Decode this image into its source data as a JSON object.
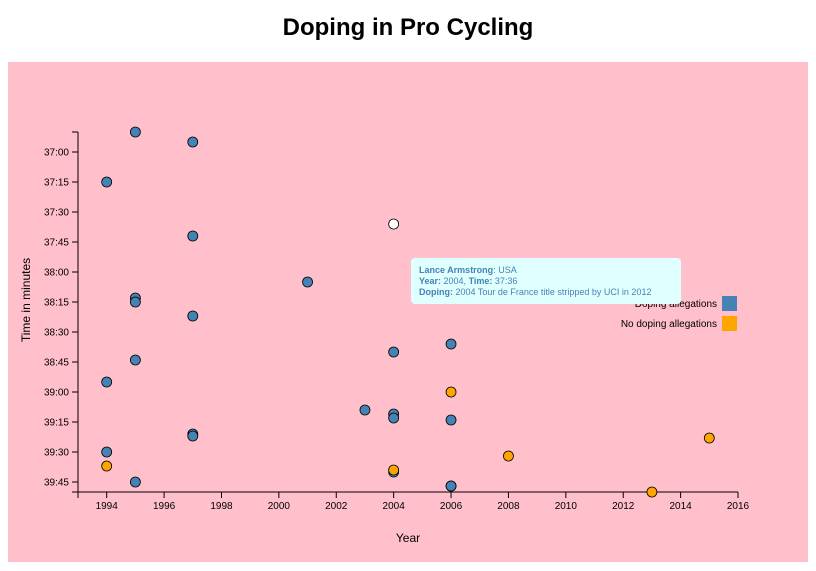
{
  "page": {
    "title": "Doping in Pro Cycling"
  },
  "colors": {
    "background": "#ffc0cb",
    "doping": "#4682b4",
    "no_doping": "#ffa500",
    "highlight": "#ffffff",
    "tooltip_bg": "#e0ffff"
  },
  "tooltip": {
    "name": "Lance Armstrong",
    "nationality": ": USA",
    "year_label": "Year:",
    "year_value": " 2004, ",
    "time_label": "Time:",
    "time_value": " 37:36",
    "doping_label": "Doping:",
    "doping_value": " 2004 Tour de France title stripped by UCI in 2012"
  },
  "chart_data": {
    "type": "scatter",
    "title": "Doping in Pro Cycling",
    "xlabel": "Year",
    "ylabel": "Time in minutes",
    "xlim": [
      1993,
      2016
    ],
    "ylim_seconds": [
      2210,
      2390
    ],
    "x_ticks": [
      "1994",
      "1996",
      "1998",
      "2000",
      "2002",
      "2004",
      "2006",
      "2008",
      "2010",
      "2012",
      "2014",
      "2016"
    ],
    "y_ticks": [
      "37:00",
      "37:15",
      "37:30",
      "37:45",
      "38:00",
      "38:15",
      "38:30",
      "38:45",
      "39:00",
      "39:15",
      "39:30",
      "39:45"
    ],
    "legend": [
      {
        "label": "Doping allegations",
        "color": "#4682b4"
      },
      {
        "label": "No doping allegations",
        "color": "#ffa500"
      }
    ],
    "legend_position": "right",
    "series": [
      {
        "name": "Doping allegations",
        "color": "#4682b4",
        "points": [
          {
            "x": 1995,
            "y": "36:50"
          },
          {
            "x": 1997,
            "y": "36:55"
          },
          {
            "x": 1994,
            "y": "37:15"
          },
          {
            "x": 1997,
            "y": "37:42"
          },
          {
            "x": 2001,
            "y": "38:05"
          },
          {
            "x": 1995,
            "y": "38:13"
          },
          {
            "x": 1995,
            "y": "38:15"
          },
          {
            "x": 1997,
            "y": "38:22"
          },
          {
            "x": 2006,
            "y": "38:36"
          },
          {
            "x": 2004,
            "y": "38:40"
          },
          {
            "x": 1995,
            "y": "38:44"
          },
          {
            "x": 1994,
            "y": "38:55"
          },
          {
            "x": 2003,
            "y": "39:09"
          },
          {
            "x": 2004,
            "y": "39:11"
          },
          {
            "x": 2004,
            "y": "39:13"
          },
          {
            "x": 2006,
            "y": "39:14"
          },
          {
            "x": 1997,
            "y": "39:21"
          },
          {
            "x": 1997,
            "y": "39:22"
          },
          {
            "x": 1994,
            "y": "39:30"
          },
          {
            "x": 2004,
            "y": "39:40"
          },
          {
            "x": 1995,
            "y": "39:45"
          },
          {
            "x": 2006,
            "y": "39:47"
          },
          {
            "x": 2006,
            "y": "39:47"
          }
        ]
      },
      {
        "name": "No doping allegations",
        "color": "#ffa500",
        "points": [
          {
            "x": 2006,
            "y": "39:00"
          },
          {
            "x": 2015,
            "y": "39:23"
          },
          {
            "x": 2008,
            "y": "39:32"
          },
          {
            "x": 1994,
            "y": "39:37"
          },
          {
            "x": 2004,
            "y": "39:39"
          },
          {
            "x": 2013,
            "y": "39:50"
          }
        ]
      }
    ],
    "highlighted_point": {
      "x": 2004,
      "y": "37:36"
    }
  }
}
